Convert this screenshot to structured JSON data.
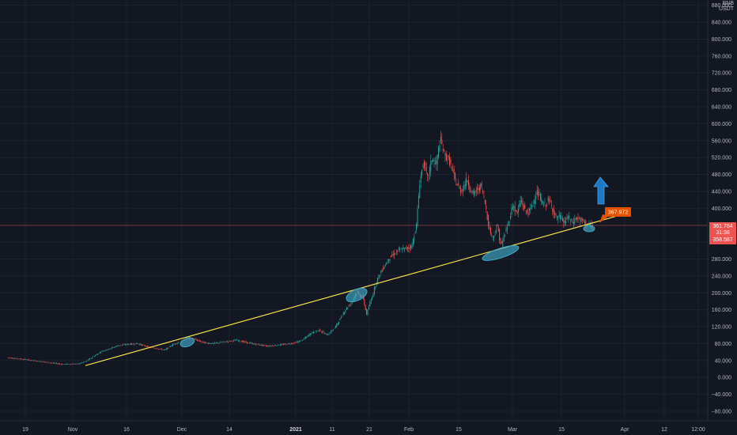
{
  "chart_data": {
    "type": "candlestick",
    "price_axis": {
      "currency_line1": "BNB",
      "currency_line2": "USDT",
      "ticks": [
        -80,
        -40,
        0,
        40,
        80,
        120,
        160,
        200,
        240,
        280,
        320,
        360,
        400,
        440,
        480,
        520,
        560,
        600,
        640,
        680,
        720,
        760,
        800,
        840,
        880
      ],
      "range": [
        -95,
        885
      ]
    },
    "time_axis": {
      "ticks": [
        {
          "label": "19",
          "bold": false
        },
        {
          "label": "Nov",
          "bold": false
        },
        {
          "label": "16",
          "bold": false
        },
        {
          "label": "Dec",
          "bold": false
        },
        {
          "label": "14",
          "bold": false
        },
        {
          "label": "2021",
          "bold": true
        },
        {
          "label": "11",
          "bold": false
        },
        {
          "label": "21",
          "bold": false
        },
        {
          "label": "Feb",
          "bold": false
        },
        {
          "label": "15",
          "bold": false
        },
        {
          "label": "Mar",
          "bold": false
        },
        {
          "label": "15",
          "bold": false
        },
        {
          "label": "Apr",
          "bold": false
        },
        {
          "label": "12",
          "bold": false
        },
        {
          "label": "12:00",
          "bold": false
        }
      ]
    },
    "price_path": [
      [
        0,
        57
      ],
      [
        10,
        47
      ],
      [
        30,
        43
      ],
      [
        60,
        36
      ],
      [
        80,
        31
      ],
      [
        100,
        32
      ],
      [
        110,
        38
      ],
      [
        120,
        50
      ],
      [
        130,
        62
      ],
      [
        140,
        68
      ],
      [
        150,
        75
      ],
      [
        160,
        78
      ],
      [
        175,
        80
      ],
      [
        185,
        74
      ],
      [
        195,
        70
      ],
      [
        210,
        65
      ],
      [
        220,
        78
      ],
      [
        230,
        85
      ],
      [
        240,
        95
      ],
      [
        250,
        88
      ],
      [
        260,
        82
      ],
      [
        270,
        80
      ],
      [
        285,
        84
      ],
      [
        300,
        88
      ],
      [
        320,
        80
      ],
      [
        340,
        74
      ],
      [
        360,
        78
      ],
      [
        375,
        82
      ],
      [
        385,
        90
      ],
      [
        395,
        105
      ],
      [
        405,
        112
      ],
      [
        415,
        100
      ],
      [
        425,
        118
      ],
      [
        432,
        140
      ],
      [
        438,
        160
      ],
      [
        445,
        175
      ],
      [
        452,
        200
      ],
      [
        460,
        190
      ],
      [
        465,
        150
      ],
      [
        470,
        180
      ],
      [
        478,
        230
      ],
      [
        486,
        260
      ],
      [
        495,
        285
      ],
      [
        505,
        300
      ],
      [
        515,
        305
      ],
      [
        522,
        310
      ],
      [
        528,
        360
      ],
      [
        532,
        460
      ],
      [
        537,
        510
      ],
      [
        542,
        470
      ],
      [
        548,
        520
      ],
      [
        553,
        500
      ],
      [
        558,
        565
      ],
      [
        563,
        530
      ],
      [
        570,
        510
      ],
      [
        578,
        460
      ],
      [
        585,
        440
      ],
      [
        592,
        470
      ],
      [
        598,
        435
      ],
      [
        604,
        440
      ],
      [
        610,
        455
      ],
      [
        616,
        400
      ],
      [
        620,
        350
      ],
      [
        625,
        330
      ],
      [
        630,
        360
      ],
      [
        635,
        310
      ],
      [
        640,
        340
      ],
      [
        645,
        370
      ],
      [
        650,
        410
      ],
      [
        655,
        385
      ],
      [
        660,
        420
      ],
      [
        665,
        395
      ],
      [
        670,
        390
      ],
      [
        675,
        410
      ],
      [
        680,
        440
      ],
      [
        685,
        420
      ],
      [
        690,
        405
      ],
      [
        695,
        420
      ],
      [
        700,
        400
      ],
      [
        705,
        375
      ],
      [
        710,
        380
      ],
      [
        715,
        365
      ],
      [
        720,
        380
      ],
      [
        725,
        365
      ],
      [
        730,
        378
      ],
      [
        735,
        372
      ],
      [
        740,
        368
      ],
      [
        745,
        360
      ],
      [
        750,
        358
      ]
    ],
    "trendline": {
      "x_start": 108,
      "x_end": 796,
      "price_start": 28,
      "price_end": 390
    },
    "current_price": {
      "value": "361.784",
      "countdown": "31:38",
      "low_value": "358.587"
    },
    "price_tag": {
      "value": "367.972"
    },
    "colors": {
      "background": "#131722",
      "up": "#26a69a",
      "down": "#ef5350",
      "trendline": "#f5e14a",
      "ellipse_fill": "#3fa9c9",
      "arrow": "#1e78c8",
      "price_line": "#ef5350",
      "tag": "#e65100"
    }
  }
}
